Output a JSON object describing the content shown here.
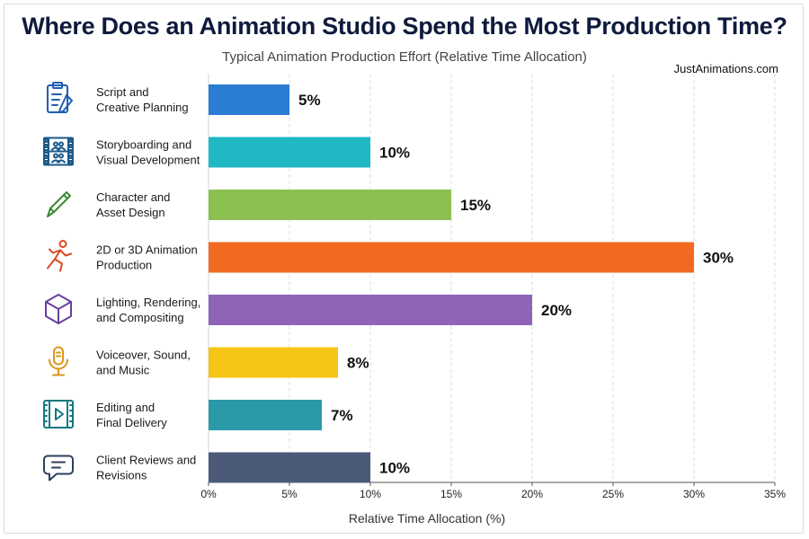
{
  "chart_data": {
    "type": "bar",
    "orientation": "horizontal",
    "title": "Where Does an Animation Studio Spend the Most Production Time?",
    "subtitle": "Typical Animation Production Effort (Relative Time Allocation)",
    "source": "JustAnimations.com",
    "xlabel": "Relative Time Allocation (%)",
    "xlim": [
      0,
      35
    ],
    "ticks": [
      "0%",
      "5%",
      "10%",
      "15%",
      "20%",
      "25%",
      "30%",
      "35%"
    ],
    "tick_values": [
      0,
      5,
      10,
      15,
      20,
      25,
      30,
      35
    ],
    "grid": true,
    "categories": [
      {
        "lines": [
          "Script and",
          "Creative Planning"
        ],
        "value": 5,
        "label": "5%",
        "color": "#2b7cd3",
        "icon": "clipboard-icon",
        "icon_color": "#1f5fb4"
      },
      {
        "lines": [
          "Storyboarding and",
          "Visual Development"
        ],
        "value": 10,
        "label": "10%",
        "color": "#1fb8c3",
        "icon": "film-strip-icon",
        "icon_color": "#1b5a8a"
      },
      {
        "lines": [
          "Character and",
          "Asset Design"
        ],
        "value": 15,
        "label": "15%",
        "color": "#8cc152",
        "icon": "pencil-icon",
        "icon_color": "#3f8a35"
      },
      {
        "lines": [
          "2D or 3D Animation",
          "Production"
        ],
        "value": 30,
        "label": "30%",
        "color": "#f26a21",
        "icon": "running-figure-icon",
        "icon_color": "#e0461f"
      },
      {
        "lines": [
          "Lighting, Rendering,",
          "and Compositing"
        ],
        "value": 20,
        "label": "20%",
        "color": "#8e63b8",
        "icon": "cube-icon",
        "icon_color": "#6a3fa0"
      },
      {
        "lines": [
          "Voiceover, Sound,",
          "and Music"
        ],
        "value": 8,
        "label": "8%",
        "color": "#f5c518",
        "icon": "microphone-icon",
        "icon_color": "#d9961a"
      },
      {
        "lines": [
          "Editing and",
          "Final Delivery"
        ],
        "value": 7,
        "label": "7%",
        "color": "#2a9aa8",
        "icon": "video-frame-icon",
        "icon_color": "#137880"
      },
      {
        "lines": [
          "Client Reviews and",
          "Revisions"
        ],
        "value": 10,
        "label": "10%",
        "color": "#4b5a78",
        "icon": "speech-bubble-icon",
        "icon_color": "#2f3f5c"
      }
    ]
  }
}
